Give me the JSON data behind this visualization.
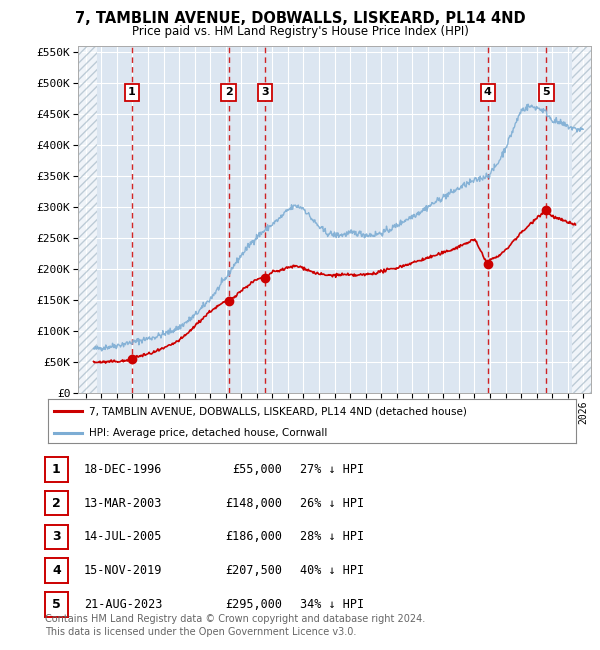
{
  "title_line1": "7, TAMBLIN AVENUE, DOBWALLS, LISKEARD, PL14 4ND",
  "title_line2": "Price paid vs. HM Land Registry's House Price Index (HPI)",
  "xlim": [
    1993.5,
    2026.5
  ],
  "ylim": [
    0,
    560000
  ],
  "yticks": [
    0,
    50000,
    100000,
    150000,
    200000,
    250000,
    300000,
    350000,
    400000,
    450000,
    500000,
    550000
  ],
  "ytick_labels": [
    "£0",
    "£50K",
    "£100K",
    "£150K",
    "£200K",
    "£250K",
    "£300K",
    "£350K",
    "£400K",
    "£450K",
    "£500K",
    "£550K"
  ],
  "plot_bg_color": "#dce6f1",
  "grid_color": "#ffffff",
  "sale_color": "#cc0000",
  "hpi_color": "#7dadd4",
  "hatch_color": "#b8c8d8",
  "sale_points": [
    {
      "num": 1,
      "year": 1996.96,
      "price": 55000,
      "date": "18-DEC-1996",
      "pct": "27%"
    },
    {
      "num": 2,
      "year": 2003.19,
      "price": 148000,
      "date": "13-MAR-2003",
      "pct": "26%"
    },
    {
      "num": 3,
      "year": 2005.53,
      "price": 186000,
      "date": "14-JUL-2005",
      "pct": "28%"
    },
    {
      "num": 4,
      "year": 2019.87,
      "price": 207500,
      "date": "15-NOV-2019",
      "pct": "40%"
    },
    {
      "num": 5,
      "year": 2023.63,
      "price": 295000,
      "date": "21-AUG-2023",
      "pct": "34%"
    }
  ],
  "xticks": [
    1994,
    1995,
    1996,
    1997,
    1998,
    1999,
    2000,
    2001,
    2002,
    2003,
    2004,
    2005,
    2006,
    2007,
    2008,
    2009,
    2010,
    2011,
    2012,
    2013,
    2014,
    2015,
    2016,
    2017,
    2018,
    2019,
    2020,
    2021,
    2022,
    2023,
    2024,
    2025,
    2026
  ],
  "hatch_left_end": 1994.75,
  "hatch_right_start": 2025.25,
  "legend_label_sale": "7, TAMBLIN AVENUE, DOBWALLS, LISKEARD, PL14 4ND (detached house)",
  "legend_label_hpi": "HPI: Average price, detached house, Cornwall",
  "footer_line1": "Contains HM Land Registry data © Crown copyright and database right 2024.",
  "footer_line2": "This data is licensed under the Open Government Licence v3.0.",
  "hpi_data_years": [
    1994.5,
    1995,
    1995.5,
    1996,
    1996.5,
    1997,
    1997.5,
    1998,
    1998.5,
    1999,
    1999.5,
    2000,
    2000.5,
    2001,
    2001.5,
    2002,
    2002.5,
    2003,
    2003.5,
    2004,
    2004.5,
    2005,
    2005.5,
    2006,
    2006.5,
    2007,
    2007.5,
    2008,
    2008.5,
    2009,
    2009.5,
    2010,
    2010.5,
    2011,
    2011.5,
    2012,
    2012.5,
    2013,
    2013.5,
    2014,
    2014.5,
    2015,
    2015.5,
    2016,
    2016.5,
    2017,
    2017.5,
    2018,
    2018.5,
    2019,
    2019.5,
    2020,
    2020.5,
    2021,
    2021.5,
    2022,
    2022.5,
    2023,
    2023.5,
    2024,
    2024.5,
    2025,
    2025.5
  ],
  "hpi_data_prices": [
    71000,
    73000,
    75000,
    77000,
    79500,
    82000,
    85000,
    88000,
    91000,
    95000,
    100000,
    106000,
    115000,
    125000,
    138000,
    152000,
    168000,
    185000,
    205000,
    222000,
    238000,
    252000,
    262000,
    272000,
    282000,
    295000,
    302000,
    298000,
    282000,
    268000,
    258000,
    255000,
    255000,
    258000,
    258000,
    255000,
    255000,
    258000,
    263000,
    270000,
    278000,
    285000,
    292000,
    300000,
    308000,
    316000,
    323000,
    330000,
    337000,
    342000,
    347000,
    353000,
    370000,
    395000,
    425000,
    455000,
    462000,
    460000,
    455000,
    440000,
    435000,
    430000,
    425000
  ],
  "sale_data_years": [
    1994.5,
    1995,
    1995.5,
    1996,
    1996.5,
    1996.96,
    1997,
    1997.5,
    1998,
    1998.5,
    1999,
    1999.5,
    2000,
    2000.5,
    2001,
    2001.5,
    2002,
    2002.5,
    2003,
    2003.19,
    2003.5,
    2004,
    2004.5,
    2005,
    2005.53,
    2006,
    2006.5,
    2007,
    2007.5,
    2008,
    2008.5,
    2009,
    2009.5,
    2010,
    2010.5,
    2011,
    2011.5,
    2012,
    2012.5,
    2013,
    2013.5,
    2014,
    2014.5,
    2015,
    2015.5,
    2016,
    2016.5,
    2017,
    2017.5,
    2018,
    2018.5,
    2019,
    2019.87,
    2020,
    2020.5,
    2021,
    2021.5,
    2022,
    2022.5,
    2023,
    2023.63,
    2024,
    2024.5,
    2025,
    2025.5
  ],
  "sale_data_prices": [
    50000,
    50000,
    50500,
    51500,
    52000,
    55000,
    57000,
    60000,
    63000,
    67000,
    72000,
    78000,
    85000,
    95000,
    108000,
    120000,
    132000,
    140000,
    148000,
    148000,
    155000,
    165000,
    175000,
    183000,
    186000,
    195000,
    198000,
    202000,
    205000,
    202000,
    196000,
    192000,
    190000,
    190000,
    191000,
    190000,
    190000,
    191000,
    193000,
    196000,
    199000,
    202000,
    206000,
    210000,
    214000,
    218000,
    222000,
    226000,
    231000,
    236000,
    242000,
    248000,
    207500,
    215000,
    220000,
    230000,
    245000,
    258000,
    270000,
    283000,
    295000,
    285000,
    280000,
    275000,
    272000
  ]
}
